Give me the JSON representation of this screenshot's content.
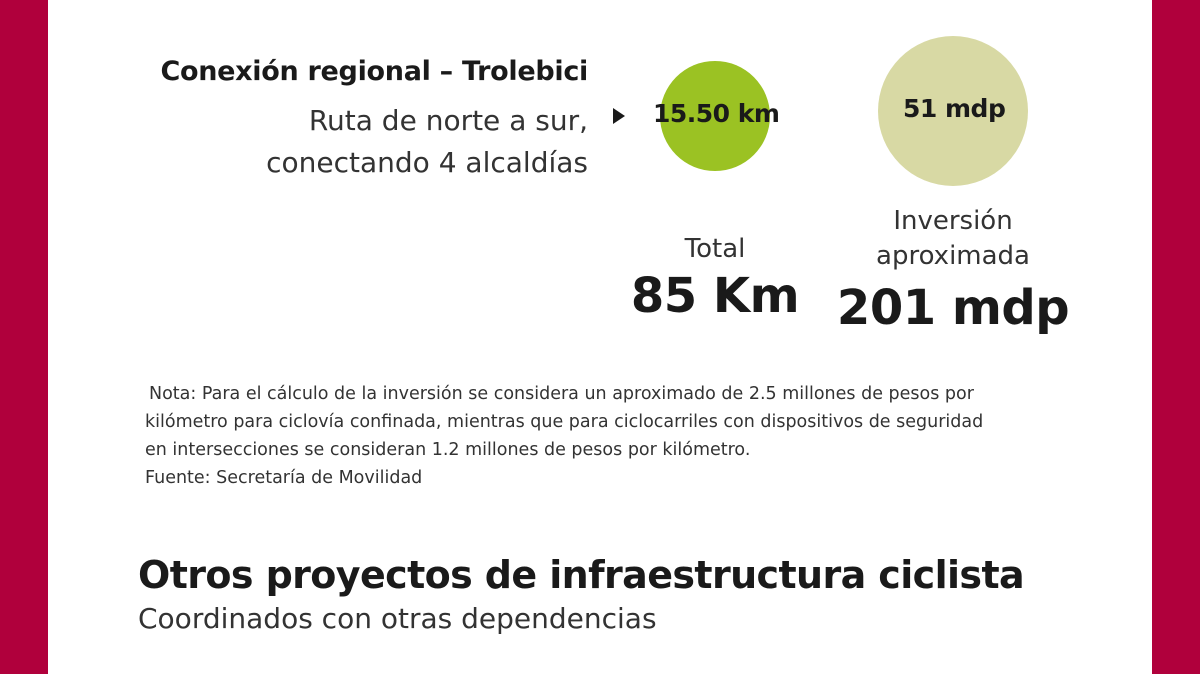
{
  "colors": {
    "frame": "#b0003c",
    "circle_km": "#9bc223",
    "circle_mdp": "#d8d9a4"
  },
  "route": {
    "title": "Conexión regional – Trolebici",
    "description_line1": "Ruta de norte a sur,",
    "description_line2": "conectando 4 alcaldías",
    "length": "15.50 km",
    "investment": "51 mdp"
  },
  "totals": {
    "total_caption": "Total",
    "total_value": "85 Km",
    "investment_caption_line1": "Inversión",
    "investment_caption_line2": "aproximada",
    "investment_value": "201 mdp"
  },
  "note": {
    "line1": "Nota: Para el cálculo de la inversión se considera un aproximado de 2.5 millones de pesos por",
    "line2": "kilómetro para ciclovía confinada, mientras que para ciclocarriles con dispositivos de seguridad",
    "line3": "en intersecciones se consideran 1.2 millones de pesos por kilómetro.",
    "source": "Fuente:  Secretaría de Movilidad"
  },
  "section": {
    "title": "Otros proyectos de infraestructura ciclista",
    "subtitle": "Coordinados con otras dependencias"
  }
}
